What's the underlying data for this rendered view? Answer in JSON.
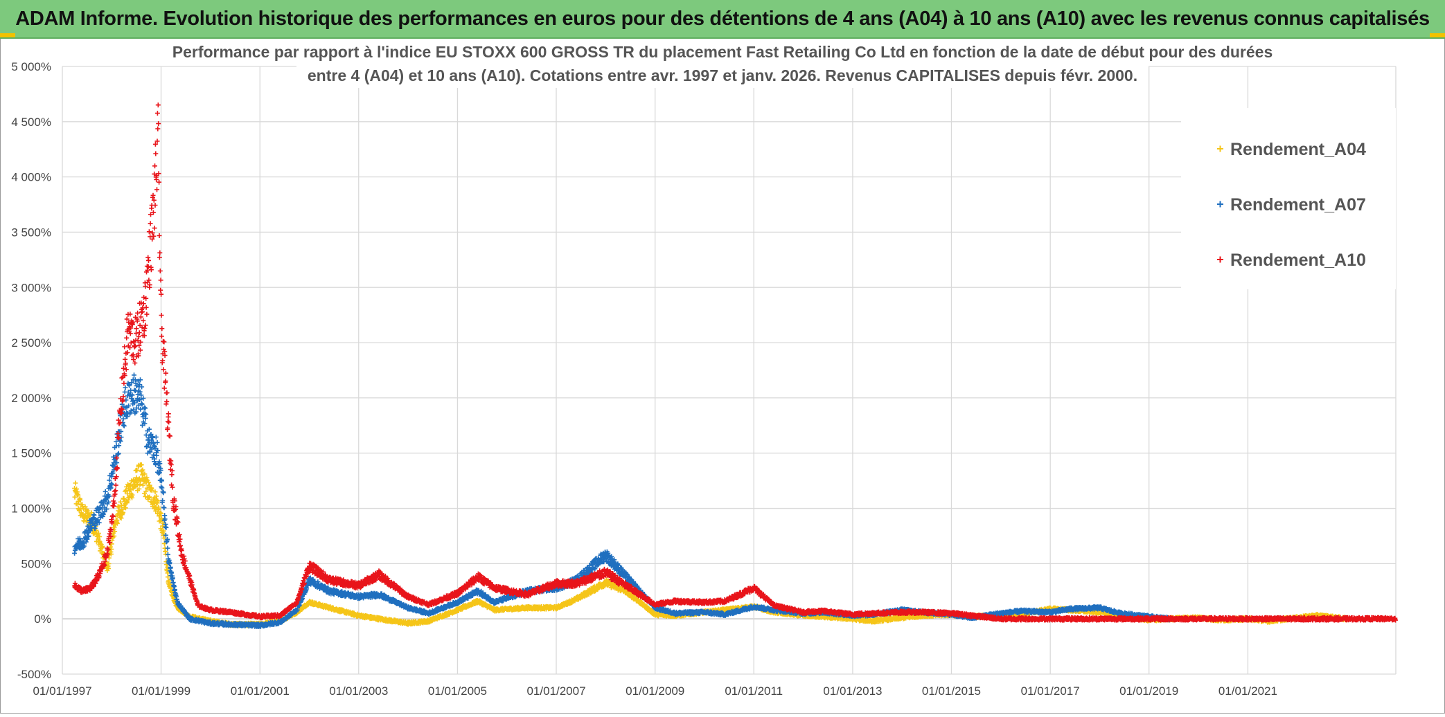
{
  "banner": {
    "title": "ADAM Informe. Evolution historique des performances en euros pour des détentions de 4 ans (A04) à 10 ans (A10) avec les revenus connus capitalisés"
  },
  "colors": {
    "banner_bg": "#7dc97d",
    "accent": "#f2c200",
    "A04": "#f5c518",
    "A07": "#1f6fbf",
    "A10": "#e8141a"
  },
  "chart_data": {
    "type": "scatter",
    "title_lines": [
      "Performance par rapport à l'indice EU STOXX 600 GROSS TR  du placement Fast Retailing Co Ltd en fonction de la date de début pour des durées",
      "entre 4 (A04) et 10 ans (A10). Cotations entre avr. 1997 et janv. 2026. Revenus CAPITALISES depuis févr. 2000."
    ],
    "x_axis": {
      "type": "date",
      "min": "1997-01-01",
      "max": "2023-12-31",
      "tick_labels": [
        "01/01/1997",
        "01/01/1999",
        "01/01/2001",
        "01/01/2003",
        "01/01/2005",
        "01/01/2007",
        "01/01/2009",
        "01/01/2011",
        "01/01/2013",
        "01/01/2015",
        "01/01/2017",
        "01/01/2019",
        "01/01/2021"
      ]
    },
    "y_axis": {
      "min": -500,
      "max": 5000,
      "unit": "%",
      "tick_values": [
        -500,
        0,
        500,
        1000,
        1500,
        2000,
        2500,
        3000,
        3500,
        4000,
        4500,
        5000
      ],
      "tick_labels": [
        "-500%",
        "0%",
        "500%",
        "1 000%",
        "1 500%",
        "2 000%",
        "2 500%",
        "3 000%",
        "3 500%",
        "4 000%",
        "4 500%",
        "5 000%"
      ]
    },
    "grid": true,
    "legend_position": "top-right",
    "marker": "+",
    "series": [
      {
        "name": "Rendement_A04",
        "color": "#f5c518",
        "end": "2022-12-31",
        "points": [
          [
            "1997-04-01",
            1150
          ],
          [
            "1997-06-01",
            950
          ],
          [
            "1997-08-01",
            900
          ],
          [
            "1997-10-01",
            700
          ],
          [
            "1997-12-01",
            450
          ],
          [
            "1998-02-01",
            900
          ],
          [
            "1998-04-01",
            1050
          ],
          [
            "1998-06-01",
            1200
          ],
          [
            "1998-08-01",
            1300
          ],
          [
            "1998-10-01",
            1150
          ],
          [
            "1998-12-01",
            1050
          ],
          [
            "1999-01-15",
            800
          ],
          [
            "1999-03-01",
            300
          ],
          [
            "1999-05-01",
            100
          ],
          [
            "1999-08-01",
            20
          ],
          [
            "2000-01-01",
            -20
          ],
          [
            "2000-06-01",
            -50
          ],
          [
            "2001-01-01",
            -50
          ],
          [
            "2001-06-01",
            -20
          ],
          [
            "2001-10-01",
            60
          ],
          [
            "2002-01-01",
            150
          ],
          [
            "2002-06-01",
            100
          ],
          [
            "2003-01-01",
            30
          ],
          [
            "2003-06-01",
            0
          ],
          [
            "2004-01-01",
            -40
          ],
          [
            "2004-06-01",
            -20
          ],
          [
            "2005-01-01",
            80
          ],
          [
            "2005-06-01",
            160
          ],
          [
            "2005-10-01",
            80
          ],
          [
            "2006-06-01",
            100
          ],
          [
            "2007-01-01",
            100
          ],
          [
            "2007-06-01",
            180
          ],
          [
            "2008-01-01",
            330
          ],
          [
            "2008-06-01",
            250
          ],
          [
            "2009-01-01",
            40
          ],
          [
            "2009-06-01",
            30
          ],
          [
            "2010-01-01",
            60
          ],
          [
            "2010-06-01",
            80
          ],
          [
            "2011-01-01",
            110
          ],
          [
            "2011-06-01",
            60
          ],
          [
            "2012-01-01",
            30
          ],
          [
            "2012-06-01",
            20
          ],
          [
            "2013-01-01",
            0
          ],
          [
            "2013-06-01",
            -20
          ],
          [
            "2014-01-01",
            10
          ],
          [
            "2014-06-01",
            30
          ],
          [
            "2015-01-01",
            40
          ],
          [
            "2015-06-01",
            20
          ],
          [
            "2016-01-01",
            30
          ],
          [
            "2016-06-01",
            40
          ],
          [
            "2017-01-01",
            90
          ],
          [
            "2017-06-01",
            80
          ],
          [
            "2018-01-01",
            60
          ],
          [
            "2018-06-01",
            30
          ],
          [
            "2019-01-01",
            -10
          ],
          [
            "2019-06-01",
            0
          ],
          [
            "2020-01-01",
            10
          ],
          [
            "2020-06-01",
            -10
          ],
          [
            "2021-01-01",
            0
          ],
          [
            "2021-06-01",
            -20
          ],
          [
            "2022-01-01",
            10
          ],
          [
            "2022-06-01",
            30
          ],
          [
            "2022-12-31",
            0
          ]
        ]
      },
      {
        "name": "Rendement_A07",
        "color": "#1f6fbf",
        "end": "2019-06-01",
        "points": [
          [
            "1997-04-01",
            650
          ],
          [
            "1997-06-01",
            700
          ],
          [
            "1997-08-01",
            850
          ],
          [
            "1997-10-01",
            950
          ],
          [
            "1997-12-01",
            1100
          ],
          [
            "1998-02-01",
            1500
          ],
          [
            "1998-04-01",
            1900
          ],
          [
            "1998-06-01",
            2050
          ],
          [
            "1998-08-01",
            2000
          ],
          [
            "1998-10-01",
            1600
          ],
          [
            "1998-12-01",
            1500
          ],
          [
            "1999-01-15",
            1100
          ],
          [
            "1999-03-01",
            500
          ],
          [
            "1999-05-01",
            150
          ],
          [
            "1999-08-01",
            0
          ],
          [
            "2000-01-01",
            -40
          ],
          [
            "2000-06-01",
            -50
          ],
          [
            "2001-01-01",
            -60
          ],
          [
            "2001-06-01",
            -30
          ],
          [
            "2001-10-01",
            80
          ],
          [
            "2002-01-01",
            350
          ],
          [
            "2002-06-01",
            250
          ],
          [
            "2003-01-01",
            200
          ],
          [
            "2003-06-01",
            220
          ],
          [
            "2004-01-01",
            100
          ],
          [
            "2004-06-01",
            50
          ],
          [
            "2005-01-01",
            150
          ],
          [
            "2005-06-01",
            250
          ],
          [
            "2005-10-01",
            150
          ],
          [
            "2006-06-01",
            250
          ],
          [
            "2007-01-01",
            280
          ],
          [
            "2007-06-01",
            350
          ],
          [
            "2008-01-01",
            580
          ],
          [
            "2008-06-01",
            380
          ],
          [
            "2009-01-01",
            100
          ],
          [
            "2009-06-01",
            50
          ],
          [
            "2010-01-01",
            60
          ],
          [
            "2010-06-01",
            40
          ],
          [
            "2011-01-01",
            110
          ],
          [
            "2011-06-01",
            80
          ],
          [
            "2012-01-01",
            50
          ],
          [
            "2012-06-01",
            60
          ],
          [
            "2013-01-01",
            30
          ],
          [
            "2013-06-01",
            40
          ],
          [
            "2014-01-01",
            80
          ],
          [
            "2014-06-01",
            60
          ],
          [
            "2015-01-01",
            40
          ],
          [
            "2015-06-01",
            10
          ],
          [
            "2016-01-01",
            50
          ],
          [
            "2016-06-01",
            70
          ],
          [
            "2017-01-01",
            60
          ],
          [
            "2017-06-01",
            90
          ],
          [
            "2018-01-01",
            100
          ],
          [
            "2018-06-01",
            50
          ],
          [
            "2019-01-01",
            20
          ],
          [
            "2019-06-01",
            0
          ]
        ]
      },
      {
        "name": "Rendement_A10",
        "color": "#e8141a",
        "end": "2023-12-31",
        "points": [
          [
            "1997-04-01",
            300
          ],
          [
            "1997-06-01",
            250
          ],
          [
            "1997-08-01",
            280
          ],
          [
            "1997-10-01",
            400
          ],
          [
            "1997-12-01",
            600
          ],
          [
            "1998-01-15",
            1000
          ],
          [
            "1998-03-01",
            1800
          ],
          [
            "1998-05-01",
            2600
          ],
          [
            "1998-07-01",
            2500
          ],
          [
            "1998-09-01",
            2800
          ],
          [
            "1998-11-01",
            3600
          ],
          [
            "1998-12-10",
            4300
          ],
          [
            "1999-01-01",
            2700
          ],
          [
            "1999-02-15",
            1900
          ],
          [
            "1999-04-01",
            1100
          ],
          [
            "1999-06-01",
            600
          ],
          [
            "1999-10-01",
            120
          ],
          [
            "2000-01-01",
            80
          ],
          [
            "2000-06-01",
            60
          ],
          [
            "2001-01-01",
            20
          ],
          [
            "2001-06-01",
            30
          ],
          [
            "2001-10-01",
            150
          ],
          [
            "2002-01-01",
            480
          ],
          [
            "2002-06-01",
            350
          ],
          [
            "2003-01-01",
            300
          ],
          [
            "2003-06-01",
            400
          ],
          [
            "2004-01-01",
            200
          ],
          [
            "2004-06-01",
            130
          ],
          [
            "2005-01-01",
            230
          ],
          [
            "2005-06-01",
            380
          ],
          [
            "2005-10-01",
            280
          ],
          [
            "2006-06-01",
            220
          ],
          [
            "2007-01-01",
            320
          ],
          [
            "2007-06-01",
            320
          ],
          [
            "2008-01-01",
            420
          ],
          [
            "2008-06-01",
            300
          ],
          [
            "2009-01-01",
            130
          ],
          [
            "2009-06-01",
            160
          ],
          [
            "2010-01-01",
            150
          ],
          [
            "2010-06-01",
            160
          ],
          [
            "2011-01-01",
            280
          ],
          [
            "2011-06-01",
            120
          ],
          [
            "2012-01-01",
            60
          ],
          [
            "2012-06-01",
            70
          ],
          [
            "2013-01-01",
            40
          ],
          [
            "2013-06-01",
            50
          ],
          [
            "2014-01-01",
            60
          ],
          [
            "2014-06-01",
            60
          ],
          [
            "2015-01-01",
            50
          ],
          [
            "2015-06-01",
            30
          ],
          [
            "2016-01-01",
            0
          ],
          [
            "2017-01-01",
            0
          ],
          [
            "2018-01-01",
            0
          ],
          [
            "2019-01-01",
            0
          ],
          [
            "2020-01-01",
            0
          ],
          [
            "2021-01-01",
            0
          ],
          [
            "2022-01-01",
            0
          ],
          [
            "2023-01-01",
            0
          ],
          [
            "2023-12-31",
            0
          ]
        ]
      }
    ]
  }
}
